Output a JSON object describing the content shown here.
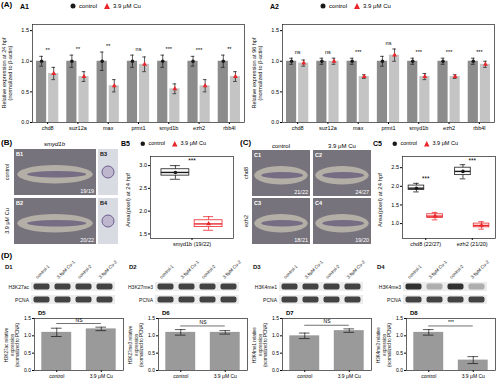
{
  "panel_labels": [
    "(A)",
    "(B)",
    "(C)",
    "(D)"
  ],
  "chart_data": [
    {
      "panel": "A1",
      "type": "bar",
      "ylabel": "Relative expression at 24 hpf (normalized to β-actin)",
      "categories": [
        "chd8",
        "suz12a",
        "max",
        "prmt1",
        "smyd1b",
        "ezh2",
        "rbb4l"
      ],
      "series": [
        {
          "name": "control",
          "color": "#1a1a1a",
          "marker": "circle",
          "values": [
            1,
            1,
            1,
            1,
            1,
            1,
            1
          ],
          "errors": [
            0.08,
            0.1,
            0.15,
            0.1,
            0.1,
            0.08,
            0.1
          ]
        },
        {
          "name": "3.9 μM Cu",
          "color": "#e8262b",
          "marker": "triangle",
          "values": [
            0.8,
            0.75,
            0.6,
            0.95,
            0.55,
            0.6,
            0.75
          ],
          "errors": [
            0.1,
            0.08,
            0.1,
            0.12,
            0.08,
            0.1,
            0.08
          ]
        }
      ],
      "significance": [
        "**",
        "**",
        "**",
        "ns",
        "***",
        "***",
        "**"
      ],
      "ylim": [
        0,
        1.6
      ],
      "yticks": [
        {
          "value": 0,
          "label": "0.0"
        },
        0.5,
        {
          "value": 1,
          "label": "1.0"
        },
        1.5
      ],
      "legend": "top"
    },
    {
      "panel": "A2",
      "type": "bar",
      "ylabel": "Relative expression at 96 hpf (normalized to β-actin)",
      "categories": [
        "chd8",
        "suz12a",
        "max",
        "prmt1",
        "smyd1b",
        "ezh2",
        "rbb4l"
      ],
      "series": [
        {
          "name": "control",
          "color": "#1a1a1a",
          "marker": "circle",
          "values": [
            1,
            1,
            1,
            1,
            1,
            1,
            1
          ],
          "errors": [
            0.05,
            0.05,
            0.05,
            0.08,
            0.05,
            0.05,
            0.05
          ]
        },
        {
          "name": "3.9 μM Cu",
          "color": "#e8262b",
          "marker": "triangle",
          "values": [
            0.97,
            1.0,
            0.75,
            1.1,
            0.75,
            0.75,
            0.95
          ],
          "errors": [
            0.05,
            0.05,
            0.03,
            0.1,
            0.05,
            0.03,
            0.05
          ]
        }
      ],
      "significance": [
        "ns",
        "ns",
        "***",
        "ns",
        "***",
        "***",
        "***"
      ],
      "ylim": [
        0,
        1.6
      ],
      "yticks": [
        {
          "value": 0,
          "label": "0.0"
        },
        0.5,
        {
          "value": 1,
          "label": "1.0"
        },
        1.5
      ],
      "legend": "top"
    },
    {
      "panel": "B5",
      "type": "box",
      "ylabel": "Area(pixel) at 24 hpf",
      "categories": [
        "smyd1b (19/22)"
      ],
      "series": [
        {
          "name": "control",
          "color": "#1a1a1a",
          "marker": "circle",
          "values": [
            2.85
          ],
          "q1": [
            2.78
          ],
          "q3": [
            2.92
          ],
          "min": [
            2.7
          ],
          "max": [
            3.0
          ]
        },
        {
          "name": "3.9 μM Cu",
          "color": "#e8262b",
          "marker": "triangle",
          "values": [
            1.72
          ],
          "q1": [
            1.65
          ],
          "q3": [
            1.8
          ],
          "min": [
            1.58
          ],
          "max": [
            1.88
          ]
        }
      ],
      "significance": [
        "***"
      ],
      "ylim": [
        1.4,
        3.2
      ],
      "yticks": [
        1.5,
        {
          "value": 2,
          "label": "2.0"
        },
        2.5,
        {
          "value": 3,
          "label": "3.0"
        }
      ],
      "legend": "top"
    },
    {
      "panel": "C5",
      "type": "box",
      "ylabel": "Area(pixel) at 24 hpf",
      "categories": [
        "chd8 (22/27)",
        "ezh2 (21/20)"
      ],
      "series": [
        {
          "name": "control",
          "color": "#1a1a1a",
          "marker": "circle",
          "values": [
            1.95,
            2.4
          ],
          "q1": [
            1.9,
            2.3
          ],
          "q3": [
            2.02,
            2.5
          ],
          "min": [
            1.85,
            2.2
          ],
          "max": [
            2.08,
            2.58
          ]
        },
        {
          "name": "3.9 μM Cu",
          "color": "#e8262b",
          "marker": "triangle",
          "values": [
            1.2,
            0.95
          ],
          "q1": [
            1.15,
            0.9
          ],
          "q3": [
            1.25,
            1.0
          ],
          "min": [
            1.1,
            0.85
          ],
          "max": [
            1.3,
            1.05
          ]
        }
      ],
      "significance": [
        "***",
        "***"
      ],
      "ylim": [
        0.6,
        2.8
      ],
      "yticks": [
        {
          "value": 1,
          "label": "1.0"
        },
        1.5,
        {
          "value": 2,
          "label": "2.0"
        },
        2.5
      ],
      "legend": "top"
    },
    {
      "panel": "D5",
      "type": "bar",
      "ylabel": "H3K27ac relative expression (normalized to PCNA)",
      "categories": [
        "control",
        "3.9 μM Cu"
      ],
      "values": [
        1.1,
        1.2
      ],
      "errors": [
        0.12,
        0.05
      ],
      "color": "#9a9a9a",
      "significance": "NS",
      "ylim": [
        0,
        1.5
      ],
      "yticks": [
        {
          "value": 0,
          "label": "0.0"
        },
        0.5,
        {
          "value": 1,
          "label": "1.0"
        },
        1.5
      ]
    },
    {
      "panel": "D6",
      "type": "bar",
      "ylabel": "H3K27me3 relative expression (normalized to PCNA)",
      "categories": [
        "control",
        "3.9 μM Cu"
      ],
      "values": [
        1.1,
        1.1
      ],
      "errors": [
        0.08,
        0.05
      ],
      "color": "#9a9a9a",
      "significance": "NS",
      "ylim": [
        0,
        1.5
      ],
      "yticks": [
        {
          "value": 0,
          "label": "0.0"
        },
        0.5,
        {
          "value": 1,
          "label": "1.0"
        },
        1.5
      ]
    },
    {
      "panel": "D7",
      "type": "bar",
      "ylabel": "H3K4me1 relative expression (normalized to PCNA)",
      "categories": [
        "control",
        "3.9 μM Cu"
      ],
      "values": [
        1.0,
        1.15
      ],
      "errors": [
        0.08,
        0.05
      ],
      "color": "#9a9a9a",
      "significance": "NS",
      "ylim": [
        0,
        1.5
      ],
      "yticks": [
        {
          "value": 0,
          "label": "0.0"
        },
        0.5,
        {
          "value": 1,
          "label": "1.0"
        },
        1.5
      ]
    },
    {
      "panel": "D8",
      "type": "bar",
      "ylabel": "H3K4me3 relative expression (normalized to PCNA)",
      "categories": [
        "control",
        "3.9 μM Cu"
      ],
      "values": [
        1.1,
        0.3
      ],
      "errors": [
        0.08,
        0.1
      ],
      "color": "#9a9a9a",
      "significance": "***",
      "ylim": [
        0,
        1.5
      ],
      "yticks": [
        {
          "value": 0,
          "label": "0.0"
        },
        0.5,
        {
          "value": 1,
          "label": "1.0"
        },
        1.5
      ]
    }
  ],
  "images": {
    "B": {
      "title": "smyd1b",
      "rows": [
        "control",
        "3.9 μM Cu"
      ],
      "panels": [
        {
          "panel": "B1",
          "count": "19/19"
        },
        {
          "panel": "B2",
          "count": "20/22"
        },
        {
          "panel": "B3"
        },
        {
          "panel": "B4"
        }
      ]
    },
    "C": {
      "columns": [
        "control",
        "3.9 μM Cu"
      ],
      "rows": [
        "chd8",
        "ezh2"
      ],
      "panels": [
        {
          "panel": "C1",
          "count": "21/22"
        },
        {
          "panel": "C2",
          "count": "24/27"
        },
        {
          "panel": "C3",
          "count": "18/21"
        },
        {
          "panel": "C4",
          "count": "19/20"
        }
      ]
    },
    "D": {
      "lanes": [
        "control-1",
        "3.9μM Cu-1",
        "control-2",
        "3.9μM Cu-2"
      ],
      "loading": "PCNA",
      "blots": [
        {
          "panel": "D1",
          "mark": "H3K27ac"
        },
        {
          "panel": "D2",
          "mark": "H3K27me3"
        },
        {
          "panel": "D3",
          "mark": "H3K4me1"
        },
        {
          "panel": "D4",
          "mark": "H3K4me3"
        }
      ]
    }
  }
}
